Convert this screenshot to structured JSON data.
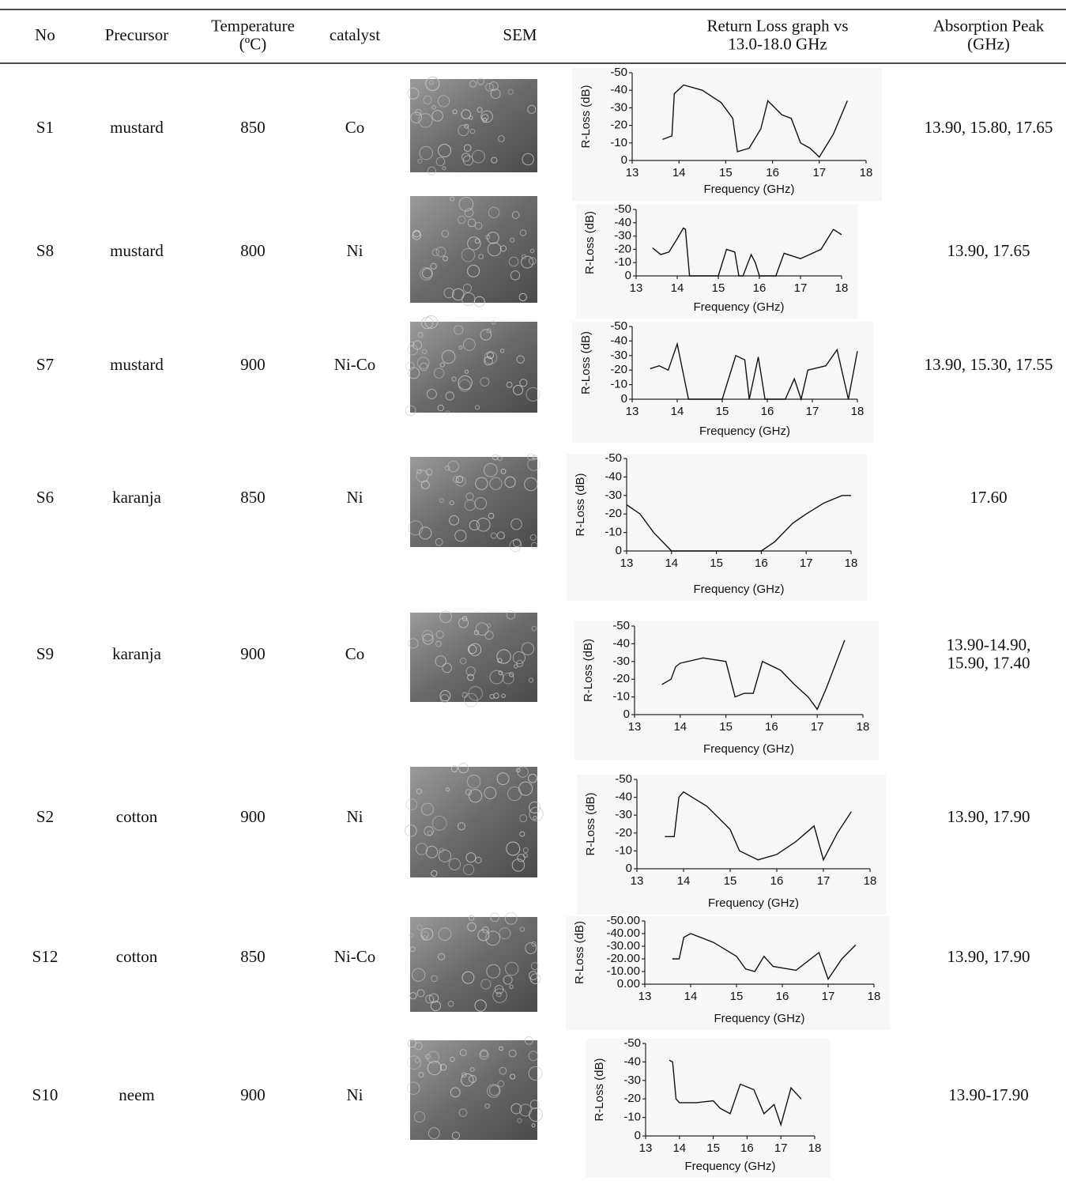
{
  "table": {
    "header": [
      {
        "lines": [
          "No"
        ]
      },
      {
        "lines": [
          "Precursor"
        ]
      },
      {
        "lines": [
          "Temperature",
          "(ºC)"
        ]
      },
      {
        "lines": [
          "catalyst"
        ]
      },
      {
        "lines": [
          "SEM"
        ]
      },
      {
        "lines": [
          "Return Loss graph vs",
          "13.0-18.0 GHz"
        ]
      },
      {
        "lines": [
          "Absorption Peak",
          "(GHz)"
        ]
      }
    ],
    "rows": [
      {
        "no": "S1",
        "precursor": "mustard",
        "temperature": "850",
        "catalyst": "Co",
        "absorption_peak": [
          "13.90, 15.80, 17.65"
        ],
        "chart": {
          "type": "line",
          "xlabel": "Frequency (GHz)",
          "ylabel": "R-Loss (dB)",
          "xlim": [
            13,
            18
          ],
          "ylim": [
            0,
            -50
          ],
          "xticks": [
            13,
            14,
            15,
            16,
            17,
            18
          ],
          "yticks": [
            -50,
            -40,
            -30,
            -20,
            -10,
            0
          ],
          "x": [
            13.65,
            13.85,
            13.9,
            14.1,
            14.5,
            14.9,
            15.15,
            15.25,
            15.5,
            15.75,
            15.9,
            16.2,
            16.4,
            16.6,
            16.8,
            17.0,
            17.3,
            17.6
          ],
          "values": [
            -12,
            -14,
            -38,
            -43,
            -40,
            -33,
            -24,
            -5,
            -7,
            -18,
            -34,
            -26,
            -24,
            -10,
            -7,
            -2,
            -15,
            -34
          ]
        }
      },
      {
        "no": "S8",
        "precursor": "mustard",
        "temperature": "800",
        "catalyst": "Ni",
        "absorption_peak": [
          "13.90, 17.65"
        ],
        "chart": {
          "type": "line",
          "xlabel": "Frequency (GHz)",
          "ylabel": "R-Loss (dB)",
          "xlim": [
            13,
            18
          ],
          "ylim": [
            0,
            -50
          ],
          "xticks": [
            13,
            14,
            15,
            16,
            17,
            18
          ],
          "yticks": [
            -50,
            -40,
            -30,
            -20,
            -10,
            0
          ],
          "x": [
            13.4,
            13.6,
            13.8,
            14.0,
            14.15,
            14.2,
            14.3,
            15.0,
            15.2,
            15.4,
            15.5,
            15.6,
            15.8,
            15.9,
            16.0,
            16.4,
            16.6,
            17.0,
            17.5,
            17.8,
            18.0
          ],
          "values": [
            -21,
            -16,
            -18,
            -28,
            -36,
            -35,
            0,
            0,
            -20,
            -18,
            0,
            0,
            -16,
            -10,
            0,
            0,
            -17,
            -13,
            -20,
            -35,
            -31
          ]
        }
      },
      {
        "no": "S7",
        "precursor": "mustard",
        "temperature": "900",
        "catalyst": "Ni-Co",
        "absorption_peak": [
          "13.90, 15.30, 17.55"
        ],
        "chart": {
          "type": "line",
          "xlabel": "Frequency (GHz)",
          "ylabel": "R-Loss (dB)",
          "xlim": [
            13,
            18
          ],
          "ylim": [
            0,
            -50
          ],
          "xticks": [
            13,
            14,
            15,
            16,
            17,
            18
          ],
          "yticks": [
            -50,
            -40,
            -30,
            -20,
            -10,
            0
          ],
          "x": [
            13.4,
            13.6,
            13.8,
            14.0,
            14.25,
            15.0,
            15.3,
            15.5,
            15.6,
            15.8,
            15.95,
            16.4,
            16.6,
            16.75,
            16.9,
            17.3,
            17.55,
            17.8,
            18.0
          ],
          "values": [
            -21,
            -23,
            -20,
            -38,
            0,
            0,
            -30,
            -27,
            0,
            -29,
            0,
            0,
            -14,
            0,
            -20,
            -23,
            -34,
            0,
            -33
          ]
        }
      },
      {
        "no": "S6",
        "precursor": "karanja",
        "temperature": "850",
        "catalyst": "Ni",
        "absorption_peak": [
          "17.60"
        ],
        "chart": {
          "type": "line",
          "xlabel": "Frequency (GHz)",
          "ylabel": "R-Loss (dB)",
          "xlim": [
            13,
            18
          ],
          "ylim": [
            0,
            -50
          ],
          "xticks": [
            13,
            14,
            15,
            16,
            17,
            18
          ],
          "yticks": [
            -50,
            -40,
            -30,
            -20,
            -10,
            0
          ],
          "x": [
            13,
            13.3,
            13.6,
            14.0,
            16.0,
            16.3,
            16.7,
            17.0,
            17.4,
            17.8,
            18
          ],
          "values": [
            -25,
            -20,
            -10,
            0,
            0,
            -5,
            -15,
            -20,
            -26,
            -30,
            -30
          ]
        }
      },
      {
        "no": "S9",
        "precursor": "karanja",
        "temperature": "900",
        "catalyst": "Co",
        "absorption_peak": [
          "13.90-14.90,",
          "15.90, 17.40"
        ],
        "chart": {
          "type": "line",
          "xlabel": "Frequency (GHz)",
          "ylabel": "R-Loss (dB)",
          "xlim": [
            13,
            18
          ],
          "ylim": [
            0,
            -50
          ],
          "xticks": [
            13,
            14,
            15,
            16,
            17,
            18
          ],
          "yticks": [
            -50,
            -40,
            -30,
            -20,
            -10,
            0
          ],
          "x": [
            13.6,
            13.8,
            13.9,
            14.0,
            14.5,
            15.0,
            15.1,
            15.2,
            15.4,
            15.6,
            15.8,
            16.2,
            16.5,
            16.8,
            17.0,
            17.2,
            17.6
          ],
          "values": [
            -17,
            -20,
            -27,
            -29,
            -32,
            -30,
            -20,
            -10,
            -12,
            -12,
            -30,
            -25,
            -17,
            -10,
            -3,
            -15,
            -42
          ]
        }
      },
      {
        "no": "S2",
        "precursor": "cotton",
        "temperature": "900",
        "catalyst": "Ni",
        "absorption_peak": [
          "13.90, 17.90"
        ],
        "chart": {
          "type": "line",
          "xlabel": "Frequency (GHz)",
          "ylabel": "R-Loss (dB)",
          "xlim": [
            13,
            18
          ],
          "ylim": [
            0,
            -50
          ],
          "xticks": [
            13,
            14,
            15,
            16,
            17,
            18
          ],
          "yticks": [
            -50,
            -40,
            -30,
            -20,
            -10,
            0
          ],
          "x": [
            13.6,
            13.8,
            13.9,
            14.0,
            14.5,
            15.0,
            15.2,
            15.6,
            16.0,
            16.4,
            16.8,
            17.0,
            17.3,
            17.6
          ],
          "values": [
            -18,
            -18,
            -40,
            -43,
            -35,
            -22,
            -10,
            -5,
            -8,
            -15,
            -24,
            -5,
            -20,
            -32
          ]
        }
      },
      {
        "no": "S12",
        "precursor": "cotton",
        "temperature": "850",
        "catalyst": "Ni-Co",
        "absorption_peak": [
          "13.90, 17.90"
        ],
        "chart": {
          "type": "line",
          "xlabel": "Frequency (GHz)",
          "ylabel": "R-Loss (dB)",
          "xlim": [
            13,
            18
          ],
          "ylim": [
            0,
            -50
          ],
          "xticks": [
            13,
            14,
            15,
            16,
            17,
            18
          ],
          "yticks": [
            {
              "value": -50,
              "label": "-50.00"
            },
            {
              "value": -40,
              "label": "-40.00"
            },
            {
              "value": -30,
              "label": "-30.00"
            },
            {
              "value": -20,
              "label": "-20.00"
            },
            {
              "value": -10,
              "label": "-10.00"
            },
            {
              "value": 0,
              "label": "0.00"
            }
          ],
          "x": [
            13.6,
            13.75,
            13.85,
            14.0,
            14.5,
            15.0,
            15.2,
            15.4,
            15.6,
            15.8,
            16.3,
            16.8,
            17.0,
            17.3,
            17.6
          ],
          "values": [
            -20,
            -20,
            -37,
            -40,
            -33,
            -22,
            -12,
            -10,
            -22,
            -14,
            -11,
            -25,
            -4,
            -20,
            -31
          ]
        }
      },
      {
        "no": "S10",
        "precursor": "neem",
        "temperature": "900",
        "catalyst": "Ni",
        "absorption_peak": [
          "13.90-17.90"
        ],
        "chart": {
          "type": "line",
          "xlabel": "Frequency (GHz)",
          "ylabel": "R-Loss (dB)",
          "xlim": [
            13,
            18
          ],
          "ylim": [
            0,
            -50
          ],
          "xticks": [
            13,
            14,
            15,
            16,
            17,
            18
          ],
          "yticks": [
            -50,
            -40,
            -30,
            -20,
            -10,
            0
          ],
          "x": [
            13.7,
            13.8,
            13.9,
            14.0,
            14.5,
            15.0,
            15.2,
            15.5,
            15.8,
            16.2,
            16.5,
            16.8,
            17.0,
            17.3,
            17.6
          ],
          "values": [
            -41,
            -40,
            -20,
            -18,
            -18,
            -19,
            -15,
            -12,
            -28,
            -25,
            -12,
            -17,
            -6,
            -26,
            -20
          ]
        }
      }
    ]
  }
}
